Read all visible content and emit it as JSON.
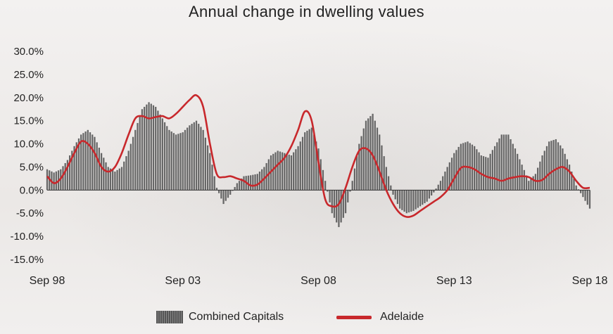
{
  "chart_data": {
    "type": "bar-line",
    "title": "Annual change in dwelling values",
    "xlabel": "",
    "ylabel": "",
    "ylim": [
      -15,
      30
    ],
    "yticks": [
      "30.0%",
      "25.0%",
      "20.0%",
      "15.0%",
      "10.0%",
      "5.0%",
      "0.0%",
      "-5.0%",
      "-10.0%",
      "-15.0%"
    ],
    "ytick_values": [
      30,
      25,
      20,
      15,
      10,
      5,
      0,
      -5,
      -10,
      -15
    ],
    "xticks": [
      "Sep 98",
      "Sep 03",
      "Sep 08",
      "Sep 13",
      "Sep 18"
    ],
    "xtick_values": [
      1998.75,
      2003.75,
      2008.75,
      2013.75,
      2018.75
    ],
    "xlim": [
      1998.75,
      2018.75
    ],
    "grid": false,
    "legend_position": "bottom",
    "colors": {
      "bars": "#6a6a6a",
      "line": "#c8282c"
    },
    "series": [
      {
        "name": "Combined Capitals",
        "kind": "bar",
        "points": [
          [
            1998.75,
            4.5
          ],
          [
            1999.0,
            3.8
          ],
          [
            1999.25,
            4.5
          ],
          [
            1999.5,
            6.5
          ],
          [
            1999.75,
            9.5
          ],
          [
            2000.0,
            12.0
          ],
          [
            2000.25,
            13.0
          ],
          [
            2000.5,
            11.5
          ],
          [
            2000.75,
            8.0
          ],
          [
            2001.0,
            5.0
          ],
          [
            2001.25,
            4.0
          ],
          [
            2001.5,
            5.0
          ],
          [
            2001.75,
            8.5
          ],
          [
            2002.0,
            13.0
          ],
          [
            2002.25,
            17.5
          ],
          [
            2002.5,
            19.0
          ],
          [
            2002.75,
            18.0
          ],
          [
            2003.0,
            15.5
          ],
          [
            2003.25,
            13.0
          ],
          [
            2003.5,
            12.0
          ],
          [
            2003.75,
            12.5
          ],
          [
            2004.0,
            14.0
          ],
          [
            2004.25,
            15.0
          ],
          [
            2004.5,
            13.0
          ],
          [
            2004.75,
            8.0
          ],
          [
            2005.0,
            0.5
          ],
          [
            2005.25,
            -3.0
          ],
          [
            2005.5,
            -1.0
          ],
          [
            2005.75,
            1.5
          ],
          [
            2006.0,
            3.0
          ],
          [
            2006.25,
            3.2
          ],
          [
            2006.5,
            3.5
          ],
          [
            2006.75,
            5.0
          ],
          [
            2007.0,
            7.5
          ],
          [
            2007.25,
            8.5
          ],
          [
            2007.5,
            8.0
          ],
          [
            2007.75,
            7.5
          ],
          [
            2008.0,
            9.5
          ],
          [
            2008.25,
            12.5
          ],
          [
            2008.5,
            13.5
          ],
          [
            2008.75,
            9.0
          ],
          [
            2009.0,
            2.0
          ],
          [
            2009.25,
            -5.0
          ],
          [
            2009.5,
            -8.0
          ],
          [
            2009.75,
            -5.0
          ],
          [
            2010.0,
            2.0
          ],
          [
            2010.25,
            10.0
          ],
          [
            2010.5,
            15.0
          ],
          [
            2010.75,
            16.5
          ],
          [
            2011.0,
            12.0
          ],
          [
            2011.25,
            5.0
          ],
          [
            2011.5,
            -1.0
          ],
          [
            2011.75,
            -4.0
          ],
          [
            2012.0,
            -5.0
          ],
          [
            2012.25,
            -4.5
          ],
          [
            2012.5,
            -3.5
          ],
          [
            2012.75,
            -2.5
          ],
          [
            2013.0,
            -0.5
          ],
          [
            2013.25,
            2.0
          ],
          [
            2013.5,
            5.0
          ],
          [
            2013.75,
            8.0
          ],
          [
            2014.0,
            10.0
          ],
          [
            2014.25,
            10.5
          ],
          [
            2014.5,
            9.5
          ],
          [
            2014.75,
            7.5
          ],
          [
            2015.0,
            7.0
          ],
          [
            2015.25,
            9.5
          ],
          [
            2015.5,
            12.0
          ],
          [
            2015.75,
            12.0
          ],
          [
            2016.0,
            9.0
          ],
          [
            2016.25,
            5.5
          ],
          [
            2016.5,
            2.0
          ],
          [
            2016.75,
            3.5
          ],
          [
            2017.0,
            7.5
          ],
          [
            2017.25,
            10.5
          ],
          [
            2017.5,
            11.0
          ],
          [
            2017.75,
            9.0
          ],
          [
            2018.0,
            5.5
          ],
          [
            2018.25,
            1.0
          ],
          [
            2018.5,
            -1.5
          ],
          [
            2018.75,
            -4.0
          ]
        ]
      },
      {
        "name": "Adelaide",
        "kind": "line",
        "points": [
          [
            1998.75,
            3.0
          ],
          [
            1999.0,
            1.5
          ],
          [
            1999.25,
            2.5
          ],
          [
            1999.5,
            5.0
          ],
          [
            1999.75,
            8.0
          ],
          [
            2000.0,
            10.5
          ],
          [
            2000.25,
            10.0
          ],
          [
            2000.5,
            8.0
          ],
          [
            2000.75,
            5.0
          ],
          [
            2001.0,
            4.0
          ],
          [
            2001.25,
            5.0
          ],
          [
            2001.5,
            8.0
          ],
          [
            2001.75,
            12.0
          ],
          [
            2002.0,
            15.5
          ],
          [
            2002.25,
            16.0
          ],
          [
            2002.5,
            15.5
          ],
          [
            2002.75,
            15.8
          ],
          [
            2003.0,
            16.0
          ],
          [
            2003.25,
            15.5
          ],
          [
            2003.5,
            16.5
          ],
          [
            2003.75,
            18.0
          ],
          [
            2004.0,
            19.5
          ],
          [
            2004.25,
            20.5
          ],
          [
            2004.5,
            18.0
          ],
          [
            2004.75,
            10.0
          ],
          [
            2005.0,
            3.5
          ],
          [
            2005.25,
            2.8
          ],
          [
            2005.5,
            3.0
          ],
          [
            2005.75,
            2.5
          ],
          [
            2006.0,
            2.0
          ],
          [
            2006.25,
            1.0
          ],
          [
            2006.5,
            1.2
          ],
          [
            2006.75,
            2.5
          ],
          [
            2007.0,
            4.0
          ],
          [
            2007.25,
            5.5
          ],
          [
            2007.5,
            7.0
          ],
          [
            2007.75,
            9.5
          ],
          [
            2008.0,
            13.0
          ],
          [
            2008.25,
            17.0
          ],
          [
            2008.5,
            15.0
          ],
          [
            2008.75,
            6.0
          ],
          [
            2009.0,
            -2.0
          ],
          [
            2009.25,
            -3.5
          ],
          [
            2009.5,
            -3.0
          ],
          [
            2009.75,
            0.5
          ],
          [
            2010.0,
            5.0
          ],
          [
            2010.25,
            8.5
          ],
          [
            2010.5,
            9.0
          ],
          [
            2010.75,
            7.5
          ],
          [
            2011.0,
            4.0
          ],
          [
            2011.25,
            0.0
          ],
          [
            2011.5,
            -3.0
          ],
          [
            2011.75,
            -5.0
          ],
          [
            2012.0,
            -5.8
          ],
          [
            2012.25,
            -5.5
          ],
          [
            2012.5,
            -4.5
          ],
          [
            2012.75,
            -3.5
          ],
          [
            2013.0,
            -2.5
          ],
          [
            2013.25,
            -1.5
          ],
          [
            2013.5,
            0.0
          ],
          [
            2013.75,
            2.5
          ],
          [
            2014.0,
            4.8
          ],
          [
            2014.25,
            5.0
          ],
          [
            2014.5,
            4.5
          ],
          [
            2014.75,
            3.5
          ],
          [
            2015.0,
            2.8
          ],
          [
            2015.25,
            2.5
          ],
          [
            2015.5,
            2.0
          ],
          [
            2015.75,
            2.5
          ],
          [
            2016.0,
            2.8
          ],
          [
            2016.25,
            3.0
          ],
          [
            2016.5,
            2.8
          ],
          [
            2016.75,
            2.0
          ],
          [
            2017.0,
            2.2
          ],
          [
            2017.25,
            3.5
          ],
          [
            2017.5,
            4.5
          ],
          [
            2017.75,
            5.0
          ],
          [
            2018.0,
            4.0
          ],
          [
            2018.25,
            2.0
          ],
          [
            2018.5,
            0.5
          ],
          [
            2018.75,
            0.5
          ]
        ]
      }
    ]
  }
}
